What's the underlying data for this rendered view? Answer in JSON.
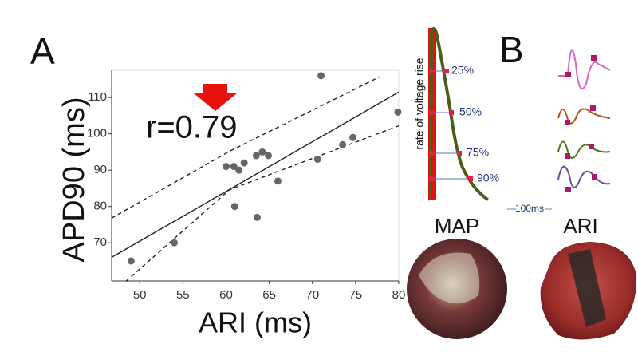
{
  "panel_labels": [
    "A",
    "B"
  ],
  "chart_data": {
    "type": "scatter",
    "annotation": "r=0.79",
    "y_label": "APD90 (ms)",
    "x_label": "ARI (ms)",
    "x": [
      49,
      54,
      60,
      60.9,
      61.5,
      62.1,
      63.5,
      64.2,
      64.9,
      61,
      63.6,
      66,
      70.6,
      73.5,
      74.7,
      71,
      79.9
    ],
    "y": [
      65,
      70,
      91,
      91,
      90,
      92,
      94,
      95,
      94,
      80,
      77,
      87,
      93,
      97,
      99,
      116,
      106
    ],
    "color": "#666666",
    "fit_line": {
      "x": [
        46.75,
        80
      ],
      "y": [
        66,
        111.5
      ]
    },
    "confidence_band_upper": {
      "x": [
        46.75,
        60.4,
        77.8
      ],
      "y": [
        76.8,
        95.2,
        115.7
      ]
    },
    "confidence_band_lower": {
      "x": [
        48.4,
        60.4,
        80
      ],
      "y": [
        59.4,
        84.6,
        102.2
      ]
    },
    "xlim": [
      46.75,
      80
    ],
    "ylim": [
      59.5,
      117.5
    ],
    "xticks": [
      50,
      55,
      60,
      65,
      70,
      75,
      80
    ],
    "yticks": [
      70,
      80,
      90,
      100,
      110
    ]
  },
  "map_panel": {
    "y_label": "rate of voltage rise",
    "levels": [
      "25%",
      "50%",
      "75%",
      "90%"
    ],
    "label": "MAP"
  },
  "scale_bar": "100ms",
  "ari_panel": {
    "label": "ARI"
  }
}
